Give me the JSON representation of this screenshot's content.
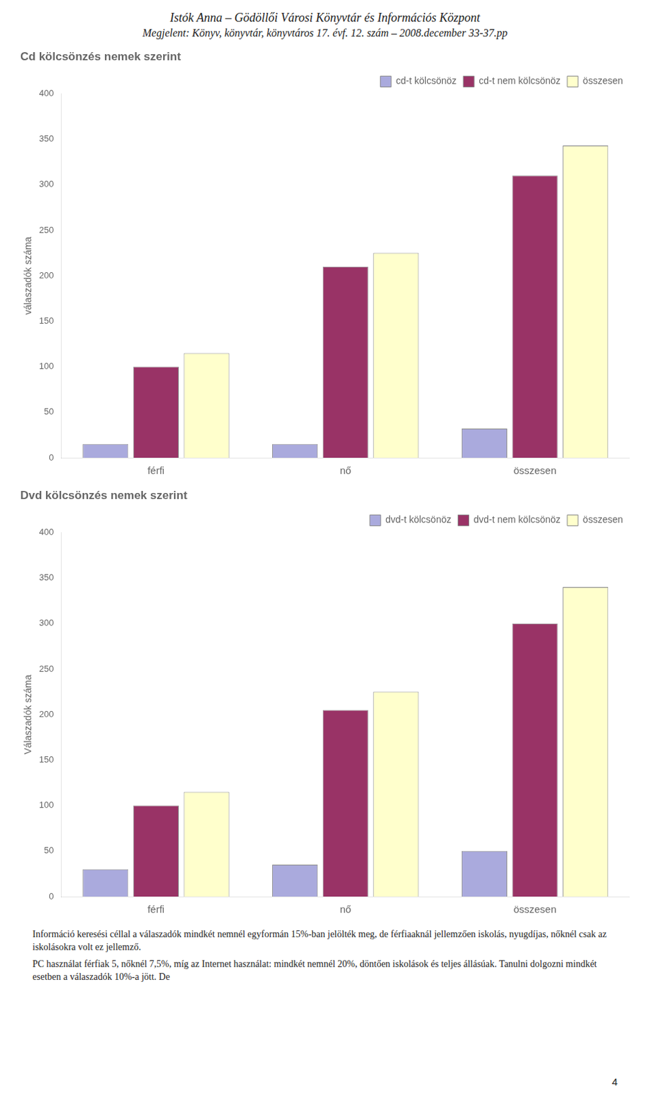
{
  "title": "Istók Anna – Gödöllői Városi Könyvtár és Információs Központ",
  "subtitle": "Megjelent: Könyv, könyvtár, könyvtáros 17. évf. 12. szám – 2008.december 33-37.pp",
  "annotations": [
    "Információ keresési céllal a válaszadók mindkét nemnél egyformán 15%-ban jelölték meg, de férfiaaknál jellemzően iskolás, nyugdíjas, nőknél csak az iskolásokra volt ez jellemző.",
    "PC használat férfiak 5, nőknél 7,5%, míg az Internet használat: mindkét nemnél 20%, döntően iskolások és teljes állásúak. Tanulni dolgozni mindkét esetben a válaszadók 10%-a jött. De",
    "4"
  ],
  "chart_data": [
    {
      "type": "bar",
      "title": "Cd kölcsönzés nemek szerint",
      "categories": [
        "férfi",
        "nő",
        "összesen"
      ],
      "series": [
        {
          "name": "cd-t kölcsönöz",
          "color": "#aaaadd",
          "values": [
            15,
            15,
            32
          ]
        },
        {
          "name": "cd-t nem kölcsönöz",
          "color": "#993366",
          "values": [
            100,
            210,
            310
          ]
        },
        {
          "name": "összesen",
          "color": "#ffffcc",
          "values": [
            115,
            225,
            343
          ]
        }
      ],
      "ylabel": "válaszadók száma",
      "ylim": [
        0,
        400
      ],
      "yticks": [
        0,
        50,
        100,
        150,
        200,
        250,
        300,
        350,
        400
      ],
      "grid": false,
      "legend": "upper right"
    },
    {
      "type": "bar",
      "title": "Dvd kölcsönzés nemek szerint",
      "categories": [
        "férfi",
        "nő",
        "összesen"
      ],
      "series": [
        {
          "name": "dvd-t kölcsönöz",
          "color": "#aaaadd",
          "values": [
            30,
            35,
            50
          ]
        },
        {
          "name": "dvd-t nem kölcsönöz",
          "color": "#993366",
          "values": [
            100,
            205,
            300
          ]
        },
        {
          "name": "összesen",
          "color": "#ffffcc",
          "values": [
            115,
            225,
            340
          ]
        }
      ],
      "ylabel": "Válaszadók száma",
      "ylim": [
        0,
        400
      ],
      "yticks": [
        0,
        50,
        100,
        150,
        200,
        250,
        300,
        350,
        400
      ],
      "grid": false,
      "legend": "upper right"
    }
  ]
}
